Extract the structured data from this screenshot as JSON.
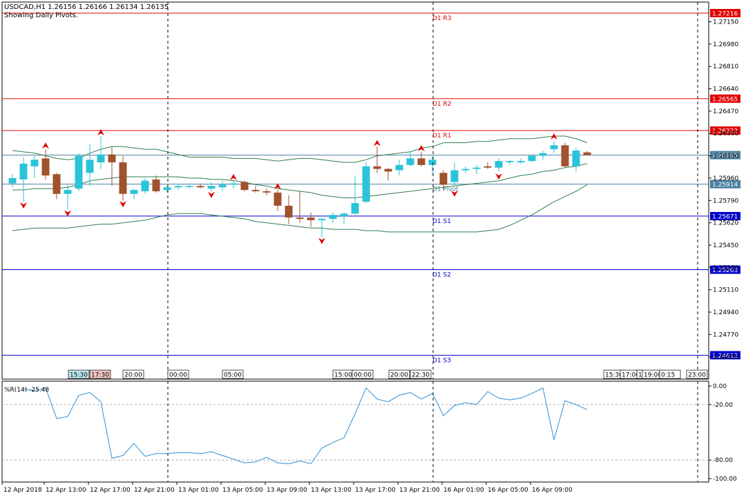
{
  "header": {
    "symbol_line": "USDCAD,H1  1.26156 1.26166 1.26134 1.26135",
    "subtitle": "Showing Daily Pivots."
  },
  "price_axis": {
    "min": 1.2443,
    "max": 1.273,
    "ticks": [
      "1.27150",
      "1.26980",
      "1.26810",
      "1.26640",
      "1.26470",
      "1.26300",
      "1.26130",
      "1.25960",
      "1.25790",
      "1.25620",
      "1.25450",
      "1.25280",
      "1.25110",
      "1.24940",
      "1.24770",
      "1.24600"
    ]
  },
  "pivot_levels": [
    {
      "name": "D1 R3",
      "value": 1.27216,
      "label": "1.27216",
      "color": "#e00000"
    },
    {
      "name": "D1 R2",
      "value": 1.26565,
      "label": "1.26565",
      "color": "#e00000"
    },
    {
      "name": "D1 R1",
      "value": 1.26322,
      "label": "1.26322",
      "color": "#e00000"
    },
    {
      "name": "D1 Pivot",
      "value": 1.25914,
      "label": "1.25914",
      "color": "#4a7fa0"
    },
    {
      "name": "D1 S1",
      "value": 1.25671,
      "label": "1.25671",
      "color": "#0000c8"
    },
    {
      "name": "D1 S2",
      "value": 1.25263,
      "label": "1.25263",
      "color": "#0000c8"
    },
    {
      "name": "D1 S3",
      "value": 1.24612,
      "label": "1.24612",
      "color": "#0000c8"
    }
  ],
  "current_price": {
    "value": 1.26135,
    "label": "1.26135",
    "color": "#4a7fa0"
  },
  "session_tags": [
    {
      "label": "15:30",
      "bg": "#bfe9f0"
    },
    {
      "label": "17:30",
      "bg": "#f4c4c4"
    },
    {
      "label": "20:00",
      "bg": "#ffffff"
    },
    {
      "label": "00:00",
      "bg": "#ffffff"
    },
    {
      "label": "05:00",
      "bg": "#ffffff"
    },
    {
      "label": "15:00",
      "bg": "#ffffff"
    },
    {
      "label": "00:00",
      "bg": "#ffffff"
    },
    {
      "label": "20:00",
      "bg": "#ffffff"
    },
    {
      "label": "22:30",
      "bg": "#ffffff"
    },
    {
      "label": "15:30",
      "bg": "#ffffff"
    },
    {
      "label": "17:00",
      "bg": "#ffffff"
    },
    {
      "label": "1",
      "bg": "#ffffff"
    },
    {
      "label": "19:00",
      "bg": "#ffffff"
    },
    {
      "label": "0:15",
      "bg": "#ffffff"
    },
    {
      "label": "23:00",
      "bg": "#ffffff"
    }
  ],
  "oscillator": {
    "label": "%R(14) -25.48",
    "min": -100,
    "max": 0,
    "ticks": [
      "0.00",
      "-20.00",
      "-80.00",
      "-100.00"
    ],
    "levels": [
      -20,
      -80
    ]
  },
  "time_axis": {
    "labels": [
      "12 Apr 2018",
      "12 Apr 13:00",
      "12 Apr 17:00",
      "12 Apr 21:00",
      "13 Apr 01:00",
      "13 Apr 05:00",
      "13 Apr 09:00",
      "13 Apr 13:00",
      "13 Apr 17:00",
      "13 Apr 21:00",
      "16 Apr 01:00",
      "16 Apr 05:00",
      "16 Apr 09:00"
    ]
  },
  "colors": {
    "bull": "#2ac3d8",
    "bear": "#a0522d",
    "band": "#2e7d4f",
    "fractal": "#e00000",
    "wpr": "#2b8fd6"
  },
  "chart_data": {
    "type": "candlestick",
    "symbol": "USDCAD",
    "timeframe": "H1",
    "candles": [
      {
        "o": 1.2592,
        "h": 1.2599,
        "l": 1.2589,
        "c": 1.2596
      },
      {
        "o": 1.2595,
        "h": 1.2612,
        "l": 1.2578,
        "c": 1.2607
      },
      {
        "o": 1.2605,
        "h": 1.2613,
        "l": 1.2596,
        "c": 1.261
      },
      {
        "o": 1.2611,
        "h": 1.2618,
        "l": 1.2595,
        "c": 1.2598
      },
      {
        "o": 1.2599,
        "h": 1.26,
        "l": 1.258,
        "c": 1.2584
      },
      {
        "o": 1.2584,
        "h": 1.2591,
        "l": 1.2572,
        "c": 1.2587
      },
      {
        "o": 1.2588,
        "h": 1.2615,
        "l": 1.2586,
        "c": 1.2613
      },
      {
        "o": 1.26,
        "h": 1.2622,
        "l": 1.259,
        "c": 1.261
      },
      {
        "o": 1.2608,
        "h": 1.2628,
        "l": 1.2603,
        "c": 1.2614
      },
      {
        "o": 1.2614,
        "h": 1.262,
        "l": 1.259,
        "c": 1.2608
      },
      {
        "o": 1.2608,
        "h": 1.2613,
        "l": 1.2579,
        "c": 1.2584
      },
      {
        "o": 1.2584,
        "h": 1.2588,
        "l": 1.258,
        "c": 1.2587
      },
      {
        "o": 1.2586,
        "h": 1.2596,
        "l": 1.2584,
        "c": 1.2594
      },
      {
        "o": 1.2595,
        "h": 1.2598,
        "l": 1.2585,
        "c": 1.2586
      },
      {
        "o": 1.2587,
        "h": 1.259,
        "l": 1.2585,
        "c": 1.2589
      },
      {
        "o": 1.2589,
        "h": 1.2591,
        "l": 1.2587,
        "c": 1.259
      },
      {
        "o": 1.259,
        "h": 1.2592,
        "l": 1.2588,
        "c": 1.259
      },
      {
        "o": 1.259,
        "h": 1.2592,
        "l": 1.2588,
        "c": 1.2589
      },
      {
        "o": 1.2588,
        "h": 1.2593,
        "l": 1.2586,
        "c": 1.259
      },
      {
        "o": 1.2589,
        "h": 1.2594,
        "l": 1.2586,
        "c": 1.2591
      },
      {
        "o": 1.2591,
        "h": 1.2594,
        "l": 1.2588,
        "c": 1.2592
      },
      {
        "o": 1.2593,
        "h": 1.2594,
        "l": 1.2586,
        "c": 1.2587
      },
      {
        "o": 1.2587,
        "h": 1.259,
        "l": 1.2585,
        "c": 1.2586
      },
      {
        "o": 1.2586,
        "h": 1.2588,
        "l": 1.2583,
        "c": 1.2585
      },
      {
        "o": 1.2585,
        "h": 1.2587,
        "l": 1.2571,
        "c": 1.2575
      },
      {
        "o": 1.2575,
        "h": 1.2583,
        "l": 1.2561,
        "c": 1.2566
      },
      {
        "o": 1.2566,
        "h": 1.2586,
        "l": 1.2562,
        "c": 1.2565
      },
      {
        "o": 1.2566,
        "h": 1.257,
        "l": 1.2559,
        "c": 1.2564
      },
      {
        "o": 1.2564,
        "h": 1.2566,
        "l": 1.2551,
        "c": 1.2565
      },
      {
        "o": 1.2565,
        "h": 1.257,
        "l": 1.2562,
        "c": 1.2568
      },
      {
        "o": 1.2567,
        "h": 1.257,
        "l": 1.2561,
        "c": 1.2569
      },
      {
        "o": 1.2569,
        "h": 1.2598,
        "l": 1.2568,
        "c": 1.2577
      },
      {
        "o": 1.2578,
        "h": 1.2608,
        "l": 1.2577,
        "c": 1.2605
      },
      {
        "o": 1.2605,
        "h": 1.262,
        "l": 1.26,
        "c": 1.2603
      },
      {
        "o": 1.2603,
        "h": 1.2604,
        "l": 1.2594,
        "c": 1.2601
      },
      {
        "o": 1.2602,
        "h": 1.261,
        "l": 1.2598,
        "c": 1.2606
      },
      {
        "o": 1.2606,
        "h": 1.2616,
        "l": 1.2605,
        "c": 1.2611
      },
      {
        "o": 1.2611,
        "h": 1.2616,
        "l": 1.2605,
        "c": 1.2606
      },
      {
        "o": 1.2606,
        "h": 1.2613,
        "l": 1.2599,
        "c": 1.261
      },
      {
        "o": 1.26,
        "h": 1.2602,
        "l": 1.2587,
        "c": 1.2591
      },
      {
        "o": 1.2593,
        "h": 1.2608,
        "l": 1.259,
        "c": 1.2602
      },
      {
        "o": 1.2602,
        "h": 1.2605,
        "l": 1.26,
        "c": 1.2603
      },
      {
        "o": 1.2603,
        "h": 1.2606,
        "l": 1.2599,
        "c": 1.2604
      },
      {
        "o": 1.2605,
        "h": 1.2608,
        "l": 1.2603,
        "c": 1.2604
      },
      {
        "o": 1.2604,
        "h": 1.2611,
        "l": 1.2601,
        "c": 1.2609
      },
      {
        "o": 1.2608,
        "h": 1.261,
        "l": 1.2606,
        "c": 1.2609
      },
      {
        "o": 1.2608,
        "h": 1.2611,
        "l": 1.2607,
        "c": 1.2609
      },
      {
        "o": 1.2609,
        "h": 1.2614,
        "l": 1.2608,
        "c": 1.2613
      },
      {
        "o": 1.2613,
        "h": 1.2617,
        "l": 1.261,
        "c": 1.2615
      },
      {
        "o": 1.2618,
        "h": 1.2624,
        "l": 1.2615,
        "c": 1.2621
      },
      {
        "o": 1.2621,
        "h": 1.2623,
        "l": 1.2604,
        "c": 1.2605
      },
      {
        "o": 1.2605,
        "h": 1.2619,
        "l": 1.2601,
        "c": 1.2617
      },
      {
        "o": 1.26156,
        "h": 1.26166,
        "l": 1.26134,
        "c": 1.26135
      }
    ],
    "bollinger": {
      "upper": [
        1.2617,
        1.2616,
        1.2615,
        1.2613,
        1.2611,
        1.261,
        1.2611,
        1.2615,
        1.2618,
        1.262,
        1.262,
        1.2619,
        1.2618,
        1.2618,
        1.2616,
        1.2614,
        1.2612,
        1.2612,
        1.2612,
        1.2612,
        1.2611,
        1.2611,
        1.2611,
        1.261,
        1.2609,
        1.261,
        1.2611,
        1.2611,
        1.261,
        1.2609,
        1.2608,
        1.2608,
        1.261,
        1.2613,
        1.2614,
        1.2615,
        1.2616,
        1.2619,
        1.262,
        1.2623,
        1.2623,
        1.2623,
        1.2624,
        1.2624,
        1.2625,
        1.2626,
        1.2626,
        1.2626,
        1.2627,
        1.2628,
        1.2628,
        1.2626,
        1.2623
      ],
      "middle": [
        1.2587,
        1.2587,
        1.2588,
        1.2588,
        1.2588,
        1.2589,
        1.2591,
        1.2594,
        1.2595,
        1.2596,
        1.2597,
        1.2597,
        1.2597,
        1.2597,
        1.2597,
        1.2597,
        1.2596,
        1.2596,
        1.2595,
        1.2595,
        1.2594,
        1.2593,
        1.2591,
        1.259,
        1.2588,
        1.2587,
        1.2586,
        1.2585,
        1.2583,
        1.2582,
        1.2581,
        1.2581,
        1.2582,
        1.2583,
        1.2584,
        1.2585,
        1.2586,
        1.2587,
        1.2588,
        1.2589,
        1.259,
        1.2591,
        1.2592,
        1.2593,
        1.2594,
        1.2596,
        1.2598,
        1.2599,
        1.2601,
        1.2602,
        1.2604,
        1.2605,
        1.2607
      ],
      "lower": [
        1.2556,
        1.2557,
        1.2558,
        1.2558,
        1.2558,
        1.2558,
        1.2559,
        1.256,
        1.2561,
        1.2561,
        1.2562,
        1.2563,
        1.2564,
        1.2566,
        1.2568,
        1.2569,
        1.2569,
        1.2569,
        1.2568,
        1.2567,
        1.2566,
        1.2565,
        1.2563,
        1.2562,
        1.2561,
        1.256,
        1.2559,
        1.2558,
        1.2558,
        1.2557,
        1.2557,
        1.2557,
        1.2556,
        1.2556,
        1.2555,
        1.2555,
        1.2555,
        1.2555,
        1.2555,
        1.2555,
        1.2555,
        1.2555,
        1.2555,
        1.2556,
        1.2557,
        1.256,
        1.2564,
        1.2568,
        1.2573,
        1.2578,
        1.2582,
        1.2586,
        1.2591
      ]
    },
    "fractals": [
      {
        "i": 1,
        "dir": "down",
        "price": 1.2576
      },
      {
        "i": 3,
        "dir": "up",
        "price": 1.262
      },
      {
        "i": 5,
        "dir": "down",
        "price": 1.257
      },
      {
        "i": 8,
        "dir": "up",
        "price": 1.263
      },
      {
        "i": 10,
        "dir": "down",
        "price": 1.2577
      },
      {
        "i": 18,
        "dir": "down",
        "price": 1.2584
      },
      {
        "i": 20,
        "dir": "up",
        "price": 1.2596
      },
      {
        "i": 24,
        "dir": "up",
        "price": 1.2589
      },
      {
        "i": 28,
        "dir": "down",
        "price": 1.2549
      },
      {
        "i": 33,
        "dir": "up",
        "price": 1.2622
      },
      {
        "i": 37,
        "dir": "up",
        "price": 1.2618
      },
      {
        "i": 40,
        "dir": "down",
        "price": 1.2585
      },
      {
        "i": 44,
        "dir": "down",
        "price": 1.2598
      },
      {
        "i": 49,
        "dir": "up",
        "price": 1.2627
      }
    ],
    "williams_r": [
      -3,
      -5,
      -2,
      -35,
      -33,
      -10,
      -7,
      -17,
      -78,
      -75,
      -62,
      -76,
      -73,
      -73,
      -72,
      -72,
      -73,
      -71,
      -75,
      -79,
      -83,
      -82,
      -77,
      -83,
      -84,
      -81,
      -84,
      -67,
      -61,
      -56,
      -30,
      -2,
      -14,
      -17,
      -10,
      -7,
      -14,
      -8,
      -32,
      -21,
      -18,
      -20,
      -6,
      -13,
      -15,
      -13,
      -8,
      -2,
      -58,
      -16,
      -20,
      -25.48
    ],
    "wpr_x_offset": 1
  }
}
